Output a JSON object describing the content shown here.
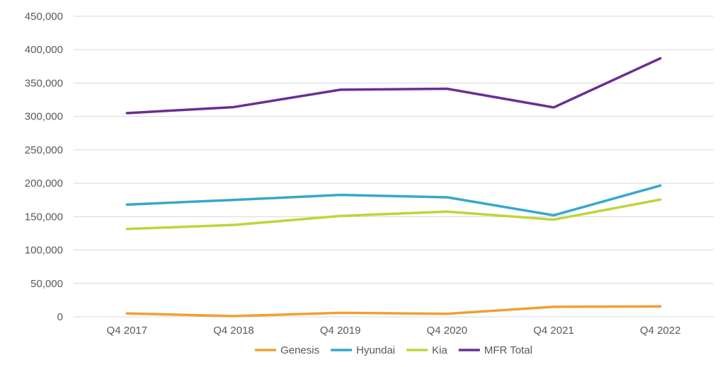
{
  "chart_data": {
    "type": "line",
    "categories": [
      "Q4 2017",
      "Q4 2018",
      "Q4 2019",
      "Q4 2020",
      "Q4 2021",
      "Q4 2022"
    ],
    "series": [
      {
        "name": "Genesis",
        "color": "#f0a030",
        "values": [
          5000,
          1000,
          6000,
          4500,
          15000,
          15500
        ]
      },
      {
        "name": "Hyundai",
        "color": "#35a8cc",
        "values": [
          168000,
          175000,
          182500,
          179000,
          152000,
          196500
        ]
      },
      {
        "name": "Kia",
        "color": "#bed53a",
        "values": [
          131500,
          137500,
          151000,
          157500,
          145500,
          175500
        ]
      },
      {
        "name": "MFR Total",
        "color": "#6b2e94",
        "values": [
          305000,
          314000,
          340000,
          341500,
          313500,
          387000
        ]
      }
    ],
    "yticks": [
      "0",
      "50,000",
      "100,000",
      "150,000",
      "200,000",
      "250,000",
      "300,000",
      "350,000",
      "400,000",
      "450,000"
    ],
    "ylim": [
      0,
      450000
    ],
    "grid": true,
    "legend_position": "bottom",
    "title": "",
    "xlabel": "",
    "ylabel": ""
  }
}
